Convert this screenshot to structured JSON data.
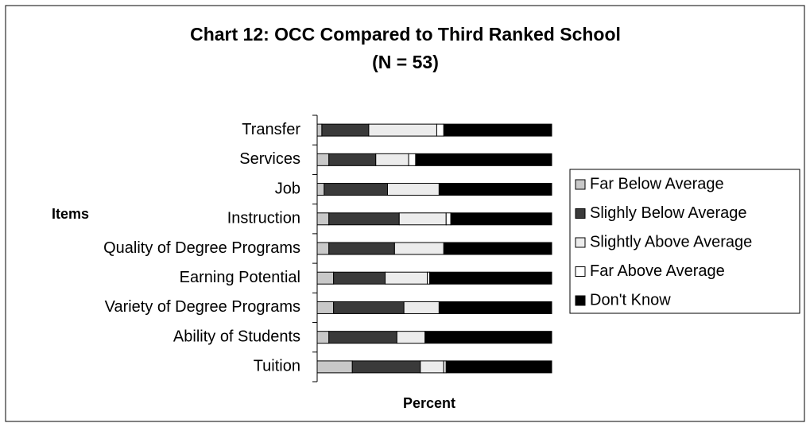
{
  "chart_data": {
    "type": "stacked_barh",
    "title": "Chart 12: OCC Compared to Third Ranked School",
    "subtitle": "(N = 53)",
    "ylabel": "Items",
    "xlabel": "Percent",
    "categories": [
      "Transfer",
      "Services",
      "Job",
      "Instruction",
      "Quality of Degree Programs",
      "Earning Potential",
      "Variety of Degree Programs",
      "Ability of Students",
      "Tuition"
    ],
    "xlim": [
      0,
      100
    ],
    "series": [
      {
        "name": "Far Below Average",
        "color": "#c8c8c8",
        "values": [
          2,
          5,
          3,
          5,
          5,
          7,
          7,
          5,
          15
        ]
      },
      {
        "name": "Slighly Below Average",
        "color": "#3a3a3a",
        "values": [
          20,
          20,
          27,
          30,
          28,
          22,
          30,
          29,
          29
        ]
      },
      {
        "name": "Slightly Above Average",
        "color": "#ececec",
        "values": [
          29,
          14,
          22,
          20,
          21,
          18,
          15,
          12,
          10
        ]
      },
      {
        "name": "Far Above Average",
        "color": "#ffffff",
        "values": [
          3,
          3,
          0,
          2,
          0,
          1,
          0,
          0,
          1
        ]
      },
      {
        "name": "Don't Know",
        "color": "#000000",
        "values": [
          46,
          58,
          48,
          43,
          46,
          52,
          48,
          54,
          45
        ]
      }
    ],
    "legend": "right"
  }
}
